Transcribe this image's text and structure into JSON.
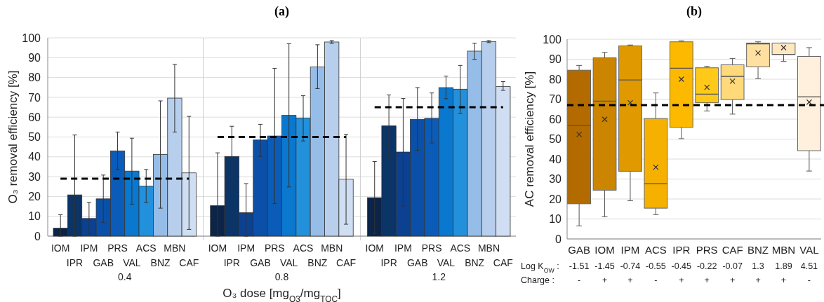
{
  "chart_data": [
    {
      "type": "bar",
      "title": "(a)",
      "xlabel": "O₃ dose [mg$_{O3}$/mg$_{TOC}$]",
      "ylabel": "O₃ removal efficiency [%]",
      "categories": [
        "IOM",
        "IPR",
        "IPM",
        "GAB",
        "PRS",
        "VAL",
        "ACS",
        "BNZ",
        "MBN",
        "CAF",
        null,
        "IOM",
        "IPR",
        "IPM",
        "GAB",
        "PRS",
        "VAL",
        "ACS",
        "BNZ",
        "MBN",
        "CAF",
        null,
        "IOM",
        "IPR",
        "IPM",
        "GAB",
        "PRS",
        "VAL",
        "ACS",
        "BNZ",
        "MBN",
        "CAF"
      ],
      "ylim": [
        0,
        100
      ],
      "yticks": [
        0,
        10,
        20,
        30,
        40,
        50,
        60,
        70,
        80,
        90,
        100
      ],
      "grid": true,
      "series": [
        {
          "type": "bar",
          "colors": [
            "#0b2447",
            "#0b3467",
            "#0b4190",
            "#0a50a8",
            "#0b5cb8",
            "#0a78cf",
            "#2390db",
            "#96bde8",
            "#b7cfec",
            "#cfdef2",
            null,
            "#0b2447",
            "#0b3467",
            "#0b4190",
            "#0a50a8",
            "#0b5cb8",
            "#0a78cf",
            "#2390db",
            "#96bde8",
            "#b7cfec",
            "#cfdef2",
            null,
            "#0b2447",
            "#0b3467",
            "#0b4190",
            "#0a50a8",
            "#0b5cb8",
            "#0a78cf",
            "#2390db",
            "#96bde8",
            "#b7cfec",
            "#cfdef2"
          ],
          "values": [
            4,
            20.8,
            8.9,
            18.8,
            43,
            32.8,
            25.2,
            41.2,
            69.6,
            31.9,
            null,
            15.4,
            40.2,
            11.8,
            48.5,
            50.5,
            60.9,
            59.5,
            85.3,
            97.9,
            28.7,
            null,
            19.4,
            55.6,
            42.4,
            58.9,
            59.4,
            74.9,
            74.1,
            93.3,
            98.1,
            75.4
          ],
          "errors": [
            [
              0,
              10.8
            ],
            [
              0,
              51
            ],
            [
              1.2,
              17
            ],
            [
              6.8,
              30.8
            ],
            [
              33.6,
              52.5
            ],
            [
              16.1,
              49.4
            ],
            [
              17,
              33.6
            ],
            [
              14.1,
              68.2
            ],
            [
              52.5,
              86.6
            ],
            [
              3.4,
              60.4
            ],
            null,
            [
              0,
              42
            ],
            [
              24.8,
              55.4
            ],
            [
              0,
              26.5
            ],
            [
              40.2,
              56.4
            ],
            [
              16.4,
              84.6
            ],
            [
              24.8,
              97
            ],
            [
              48,
              70.8
            ],
            [
              74.4,
              96.5
            ],
            [
              97.2,
              98.6
            ],
            [
              6,
              51.3
            ],
            null,
            [
              1.3,
              37.6
            ],
            [
              40.2,
              71.2
            ],
            [
              15.2,
              69.4
            ],
            [
              43.3,
              74.9
            ],
            [
              47,
              72.2
            ],
            [
              69.3,
              80.7
            ],
            [
              62,
              86.1
            ],
            [
              89.2,
              97.3
            ],
            [
              97.6,
              98.6
            ],
            [
              73.5,
              77.9
            ]
          ]
        },
        {
          "type": "line",
          "color": "#000000",
          "line_style": "dashed",
          "values": [
            29,
            29,
            29,
            29,
            29,
            29,
            29,
            29,
            29,
            29,
            null,
            50,
            50,
            50,
            50,
            50,
            50,
            50,
            50,
            50,
            50,
            null,
            65,
            65,
            65,
            65,
            65,
            65,
            65,
            65,
            65,
            65
          ]
        }
      ],
      "annotations": [
        "0.4",
        "0.8",
        "1.2"
      ]
    },
    {
      "type": "box",
      "title": "(b)",
      "ylabel": "AC removal efficiency [%]",
      "categories": [
        "GAB",
        "IOM",
        "IPM",
        "ACS",
        "IPR",
        "PRS",
        "CAF",
        "BNZ",
        "MBN",
        "VAL"
      ],
      "colors": [
        "#b36b00",
        "#cc8500",
        "#e09a00",
        "#f5b000",
        "#fcb900",
        "#ffc91a",
        "#ffd97a",
        "#ffe0a0",
        "#ffe8bf",
        "#fff0dd"
      ],
      "boxes": [
        {
          "low": 6.5,
          "q1": 17.6,
          "median": 56.8,
          "q3": 84.5,
          "high": 86.9,
          "mean": 52.3
        },
        {
          "low": 11.1,
          "q1": 24.4,
          "median": 69,
          "q3": 90.7,
          "high": 93.4,
          "mean": 59.9
        },
        {
          "low": 19.1,
          "q1": 33.9,
          "median": 79.6,
          "q3": 96.7,
          "high": 97.1,
          "mean": 68.2
        },
        {
          "low": 12.2,
          "q1": 15.4,
          "median": 27.7,
          "q3": 60.3,
          "high": 73.1,
          "mean": 35.9
        },
        {
          "low": 50.2,
          "q1": 55.9,
          "median": 85.5,
          "q3": 98.7,
          "high": 99.2,
          "mean": 80
        },
        {
          "low": 64.1,
          "q1": 68.2,
          "median": 72.5,
          "q3": 85.7,
          "high": 86.5,
          "mean": 75.9
        },
        {
          "low": 62.5,
          "q1": 69.8,
          "median": 81.4,
          "q3": 87.2,
          "high": 90.4,
          "mean": 79
        },
        {
          "low": 80.3,
          "q1": 86.2,
          "median": 97.7,
          "q3": 98.1,
          "high": 98.7,
          "mean": 93.1
        },
        {
          "low": 88.9,
          "q1": 92.4,
          "median": 92.4,
          "q3": 98.1,
          "high": 98.1,
          "mean": 95.8
        },
        {
          "low": 34,
          "q1": 44.2,
          "median": 71.2,
          "q3": 91.4,
          "high": 95.8,
          "mean": 68.5
        }
      ],
      "ylim": [
        0,
        100
      ],
      "yticks": [
        0,
        10,
        20,
        30,
        40,
        50,
        60,
        70,
        80,
        90,
        100
      ],
      "grid": "y",
      "ref_lines": [
        {
          "axis": "y",
          "value": 67,
          "color": "#000000",
          "line_style": "dashed"
        }
      ],
      "annotations": [
        "Log K$_{OW}$ :",
        "-1.51",
        "-1.45",
        "-0.74",
        "-0.55",
        "-0.45",
        "-0.22",
        "-0.07",
        "1.3",
        "1.89",
        "4.51",
        "Charge :",
        "-",
        "+",
        "+",
        "-",
        "+",
        "+",
        "+",
        "+",
        "+",
        "-"
      ]
    }
  ]
}
